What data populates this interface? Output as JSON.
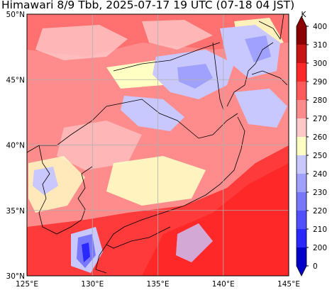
{
  "title": "Himawari 8/9 Tbb, 2025-07-17 19 UTC (07-18 04 JST)",
  "map": {
    "lon_range": [
      125,
      145
    ],
    "lat_range": [
      30,
      50
    ],
    "lon_ticks": [
      "125°E",
      "130°E",
      "135°E",
      "140°E",
      "145°E"
    ],
    "lat_ticks": [
      "30°N",
      "35°N",
      "40°N",
      "45°N",
      "50°N"
    ]
  },
  "colorbar": {
    "unit": "K",
    "ticks": [
      "400",
      "310",
      "300",
      "290",
      "280",
      "270",
      "260",
      "250",
      "240",
      "230",
      "220",
      "210",
      "200",
      "0"
    ],
    "colors": [
      "#8b0000",
      "#c81414",
      "#ff2828",
      "#ff5a5a",
      "#ff8c8c",
      "#ffc8c8",
      "#ffffc4",
      "#c8c8ff",
      "#a0a0ff",
      "#7878ff",
      "#5050ff",
      "#2828ff",
      "#0000c8"
    ]
  }
}
